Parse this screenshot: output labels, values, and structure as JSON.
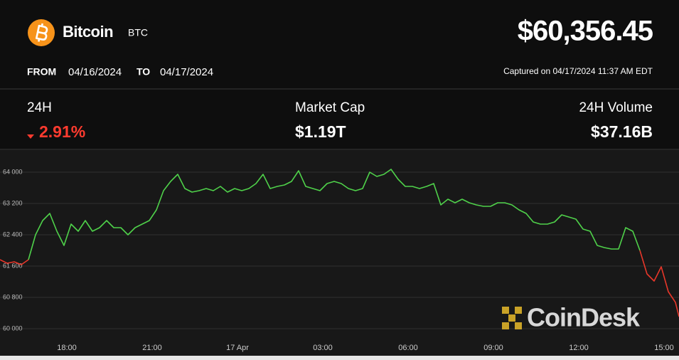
{
  "header": {
    "name": "Bitcoin",
    "symbol": "BTC",
    "price": "$60,356.45",
    "from_label": "FROM",
    "from_date": "04/16/2024",
    "to_label": "TO",
    "to_date": "04/17/2024",
    "captured": "Captured on 04/17/2024 11:37 AM EDT"
  },
  "stats": [
    {
      "label": "24H",
      "value": "2.91%"
    },
    {
      "label": "Market Cap",
      "value": "$1.19T"
    },
    {
      "label": "24H Volume",
      "value": "$37.16B"
    }
  ],
  "watermark": "CoinDesk",
  "chart_data": {
    "type": "line",
    "x": [
      15.65,
      15.9,
      16.15,
      16.4,
      16.65,
      16.9,
      17.15,
      17.4,
      17.65,
      17.9,
      18.15,
      18.4,
      18.65,
      18.9,
      19.15,
      19.4,
      19.65,
      19.9,
      20.15,
      20.4,
      20.65,
      20.9,
      21.15,
      21.4,
      21.65,
      21.9,
      22.15,
      22.4,
      22.65,
      22.9,
      23.15,
      23.4,
      23.65,
      23.9,
      24.15,
      24.4,
      24.65,
      24.9,
      25.15,
      25.4,
      25.65,
      25.9,
      26.15,
      26.4,
      26.65,
      26.9,
      27.15,
      27.4,
      27.65,
      27.9,
      28.15,
      28.4,
      28.65,
      28.9,
      29.15,
      29.4,
      29.65,
      29.9,
      30.15,
      30.4,
      30.65,
      30.9,
      31.15,
      31.4,
      31.65,
      31.9,
      32.15,
      32.4,
      32.65,
      32.9,
      33.15,
      33.4,
      33.65,
      33.9,
      34.15,
      34.4,
      34.65,
      34.9,
      35.15,
      35.4,
      35.65,
      35.9,
      36.15,
      36.4,
      36.65,
      36.9,
      37.15,
      37.4,
      37.65,
      37.9,
      38.15,
      38.4,
      38.65,
      38.9,
      39.15,
      39.4,
      39.525
    ],
    "series": [
      {
        "color": "#e8372a",
        "values": [
          61764,
          61673,
          61709,
          61636,
          61764,
          null,
          null,
          null,
          null,
          null,
          null,
          null,
          null,
          null,
          null,
          null,
          null,
          null,
          null,
          null,
          null,
          null,
          null,
          null,
          null,
          null,
          null,
          null,
          null,
          null,
          null,
          null,
          null,
          null,
          null,
          null,
          null,
          null,
          null,
          null,
          null,
          null,
          null,
          null,
          null,
          null,
          null,
          null,
          null,
          null,
          null,
          null,
          null,
          null,
          null,
          null,
          null,
          null,
          null,
          null,
          null,
          null,
          null,
          null,
          null,
          null,
          null,
          null,
          null,
          null,
          null,
          null,
          null,
          null,
          null,
          null,
          null,
          null,
          null,
          null,
          null,
          null,
          null,
          null,
          null,
          null,
          null,
          null,
          null,
          null,
          62000,
          61400,
          61218,
          61582,
          60945,
          60673,
          60309
        ]
      },
      {
        "color": "#4fd14a",
        "values": [
          null,
          null,
          null,
          null,
          61764,
          62400,
          62764,
          62945,
          62491,
          62127,
          62673,
          62491,
          62764,
          62491,
          62582,
          62764,
          62582,
          62582,
          62400,
          62582,
          62673,
          62764,
          63036,
          63527,
          63764,
          63945,
          63582,
          63491,
          63527,
          63582,
          63527,
          63636,
          63491,
          63582,
          63527,
          63582,
          63709,
          63945,
          63582,
          63636,
          63673,
          63764,
          64036,
          63636,
          63582,
          63527,
          63709,
          63764,
          63709,
          63582,
          63527,
          63582,
          64000,
          63891,
          63945,
          64073,
          63818,
          63636,
          63636,
          63582,
          63636,
          63709,
          63164,
          63309,
          63218,
          63309,
          63218,
          63164,
          63127,
          63127,
          63218,
          63218,
          63164,
          63036,
          62945,
          62727,
          62673,
          62673,
          62727,
          62909,
          62855,
          62800,
          62545,
          62491,
          62127,
          62073,
          62036,
          62036,
          62582,
          62491,
          62000,
          null,
          null,
          null,
          null,
          null,
          null
        ]
      }
    ],
    "xlim": [
      15.65,
      39.525
    ],
    "xticks": [
      {
        "value": 18,
        "label": "18:00"
      },
      {
        "value": 21,
        "label": "21:00"
      },
      {
        "value": 24,
        "label": "17 Apr"
      },
      {
        "value": 27,
        "label": "03:00"
      },
      {
        "value": 30,
        "label": "06:00"
      },
      {
        "value": 33,
        "label": "09:00"
      },
      {
        "value": 36,
        "label": "12:00"
      },
      {
        "value": 39,
        "label": "15:00"
      }
    ],
    "ylim": [
      59709,
      64527
    ],
    "yticks": [
      {
        "value": 64000,
        "label": "64 000"
      },
      {
        "value": 63200,
        "label": "63 200"
      },
      {
        "value": 62400,
        "label": "62 400"
      },
      {
        "value": 61600,
        "label": "61 600"
      },
      {
        "value": 60800,
        "label": "60 800"
      },
      {
        "value": 60000,
        "label": "60 000"
      }
    ],
    "grid": true
  }
}
